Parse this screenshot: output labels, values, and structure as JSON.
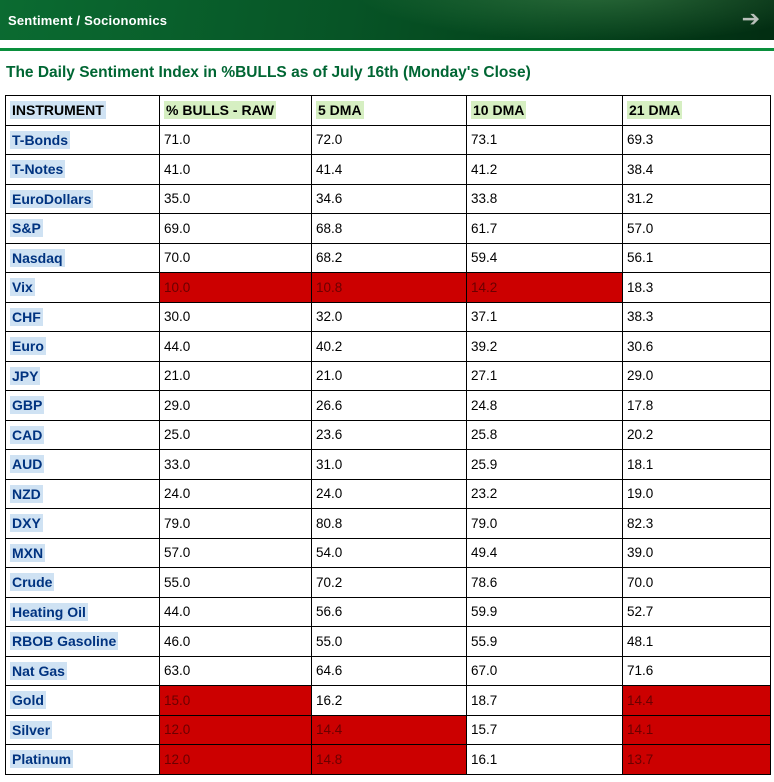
{
  "banner": {
    "title": "Sentiment / Socionomics",
    "arrow_icon": "forward-arrow",
    "arrow_glyph": "➔"
  },
  "page": {
    "title": "The Daily Sentiment Index in %BULLS as of July 16th (Monday's Close)"
  },
  "colors": {
    "banner_green_dark": "#03401a",
    "banner_green_light": "#0b6b31",
    "rule_green": "#0a8f3c",
    "title_green": "#006633",
    "instrument_text": "#003380",
    "instrument_highlight": "#cfe2f3",
    "header_highlight": "#d6efc2",
    "red_cell_bg": "#cc0000",
    "red_cell_text": "#6b0000"
  },
  "table": {
    "columns": [
      "INSTRUMENT",
      "% BULLS - RAW",
      "5 DMA",
      "10 DMA",
      "21 DMA"
    ],
    "rows": [
      {
        "instrument": "T-Bonds",
        "values": [
          "71.0",
          "72.0",
          "73.1",
          "69.3"
        ],
        "red": [
          false,
          false,
          false,
          false
        ]
      },
      {
        "instrument": "T-Notes",
        "values": [
          "41.0",
          "41.4",
          "41.2",
          "38.4"
        ],
        "red": [
          false,
          false,
          false,
          false
        ]
      },
      {
        "instrument": "EuroDollars",
        "values": [
          "35.0",
          "34.6",
          "33.8",
          "31.2"
        ],
        "red": [
          false,
          false,
          false,
          false
        ]
      },
      {
        "instrument": "S&P",
        "values": [
          "69.0",
          "68.8",
          "61.7",
          "57.0"
        ],
        "red": [
          false,
          false,
          false,
          false
        ]
      },
      {
        "instrument": "Nasdaq",
        "values": [
          "70.0",
          "68.2",
          "59.4",
          "56.1"
        ],
        "red": [
          false,
          false,
          false,
          false
        ]
      },
      {
        "instrument": "Vix",
        "values": [
          "10.0",
          "10.8",
          "14.2",
          "18.3"
        ],
        "red": [
          true,
          true,
          true,
          false
        ]
      },
      {
        "instrument": "CHF",
        "values": [
          "30.0",
          "32.0",
          "37.1",
          "38.3"
        ],
        "red": [
          false,
          false,
          false,
          false
        ]
      },
      {
        "instrument": "Euro",
        "values": [
          "44.0",
          "40.2",
          "39.2",
          "30.6"
        ],
        "red": [
          false,
          false,
          false,
          false
        ]
      },
      {
        "instrument": "JPY",
        "values": [
          "21.0",
          "21.0",
          "27.1",
          "29.0"
        ],
        "red": [
          false,
          false,
          false,
          false
        ]
      },
      {
        "instrument": "GBP",
        "values": [
          "29.0",
          "26.6",
          "24.8",
          "17.8"
        ],
        "red": [
          false,
          false,
          false,
          false
        ]
      },
      {
        "instrument": "CAD",
        "values": [
          "25.0",
          "23.6",
          "25.8",
          "20.2"
        ],
        "red": [
          false,
          false,
          false,
          false
        ]
      },
      {
        "instrument": "AUD",
        "values": [
          "33.0",
          "31.0",
          "25.9",
          "18.1"
        ],
        "red": [
          false,
          false,
          false,
          false
        ]
      },
      {
        "instrument": "NZD",
        "values": [
          "24.0",
          "24.0",
          "23.2",
          "19.0"
        ],
        "red": [
          false,
          false,
          false,
          false
        ]
      },
      {
        "instrument": "DXY",
        "values": [
          "79.0",
          "80.8",
          "79.0",
          "82.3"
        ],
        "red": [
          false,
          false,
          false,
          false
        ]
      },
      {
        "instrument": "MXN",
        "values": [
          "57.0",
          "54.0",
          "49.4",
          "39.0"
        ],
        "red": [
          false,
          false,
          false,
          false
        ]
      },
      {
        "instrument": "Crude",
        "values": [
          "55.0",
          "70.2",
          "78.6",
          "70.0"
        ],
        "red": [
          false,
          false,
          false,
          false
        ]
      },
      {
        "instrument": "Heating Oil",
        "values": [
          "44.0",
          "56.6",
          "59.9",
          "52.7"
        ],
        "red": [
          false,
          false,
          false,
          false
        ]
      },
      {
        "instrument": "RBOB Gasoline",
        "values": [
          "46.0",
          "55.0",
          "55.9",
          "48.1"
        ],
        "red": [
          false,
          false,
          false,
          false
        ]
      },
      {
        "instrument": "Nat Gas",
        "values": [
          "63.0",
          "64.6",
          "67.0",
          "71.6"
        ],
        "red": [
          false,
          false,
          false,
          false
        ]
      },
      {
        "instrument": "Gold",
        "values": [
          "15.0",
          "16.2",
          "18.7",
          "14.4"
        ],
        "red": [
          true,
          false,
          false,
          true
        ]
      },
      {
        "instrument": "Silver",
        "values": [
          "12.0",
          "14.4",
          "15.7",
          "14.1"
        ],
        "red": [
          true,
          true,
          false,
          true
        ]
      },
      {
        "instrument": "Platinum",
        "values": [
          "12.0",
          "14.8",
          "16.1",
          "13.7"
        ],
        "red": [
          true,
          true,
          false,
          true
        ]
      }
    ]
  }
}
